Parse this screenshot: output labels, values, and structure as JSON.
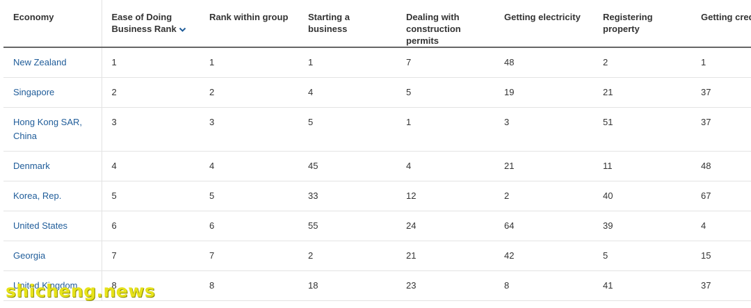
{
  "table": {
    "headers": [
      "Economy",
      "Ease of Doing Business Rank",
      "Rank within group",
      "Starting a business",
      "Dealing with construction permits",
      "Getting electricity",
      "Registering property",
      "Getting credit"
    ],
    "rows": [
      [
        "New Zealand",
        "1",
        "1",
        "1",
        "7",
        "48",
        "2",
        "1"
      ],
      [
        "Singapore",
        "2",
        "2",
        "4",
        "5",
        "19",
        "21",
        "37"
      ],
      [
        "Hong Kong SAR, China",
        "3",
        "3",
        "5",
        "1",
        "3",
        "51",
        "37"
      ],
      [
        "Denmark",
        "4",
        "4",
        "45",
        "4",
        "21",
        "11",
        "48"
      ],
      [
        "Korea, Rep.",
        "5",
        "5",
        "33",
        "12",
        "2",
        "40",
        "67"
      ],
      [
        "United States",
        "6",
        "6",
        "55",
        "24",
        "64",
        "39",
        "4"
      ],
      [
        "Georgia",
        "7",
        "7",
        "2",
        "21",
        "42",
        "5",
        "15"
      ],
      [
        "United Kingdom",
        "8",
        "8",
        "18",
        "23",
        "8",
        "41",
        "37"
      ]
    ]
  },
  "icons": {
    "sort": "chevron-down-icon"
  },
  "colors": {
    "link": "#1f5c99",
    "text": "#333333",
    "header_rule": "#666666",
    "row_rule": "#e3e3e3",
    "watermark": "#e6e21a"
  },
  "watermark": {
    "text": "shicheng.news"
  }
}
